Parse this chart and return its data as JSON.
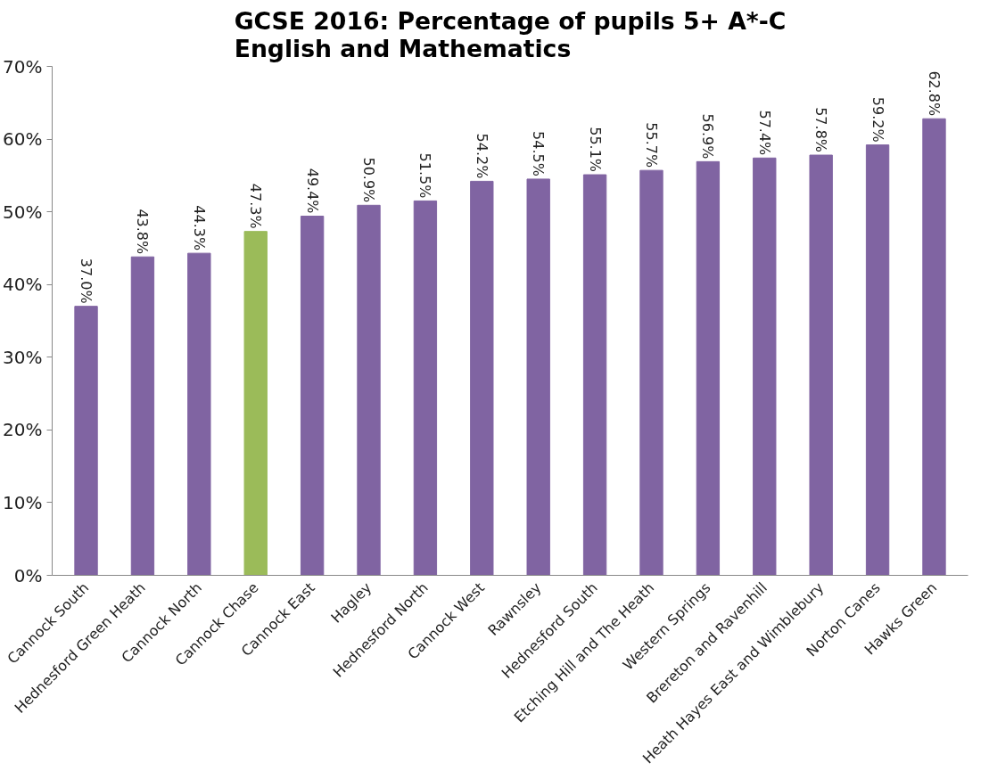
{
  "chart_data": {
    "type": "bar",
    "title": "GCSE 2016: Percentage of pupils 5+ A*-C\nEnglish and Mathematics",
    "categories": [
      "Cannock South",
      "Hednesford Green Heath",
      "Cannock North",
      "Cannock Chase",
      "Cannock East",
      "Hagley",
      "Hednesford North",
      "Cannock West",
      "Rawnsley",
      "Hednesford South",
      "Etching Hill and The Heath",
      "Western Springs",
      "Brereton and Ravenhill",
      "Heath Hayes East and Wimblebury",
      "Norton Canes",
      "Hawks Green"
    ],
    "values": [
      37.0,
      43.8,
      44.3,
      47.3,
      49.4,
      50.9,
      51.5,
      54.2,
      54.5,
      55.1,
      55.7,
      56.9,
      57.4,
      57.8,
      59.2,
      62.8
    ],
    "colors": [
      "#8064a2",
      "#8064a2",
      "#8064a2",
      "#9bbb59",
      "#8064a2",
      "#8064a2",
      "#8064a2",
      "#8064a2",
      "#8064a2",
      "#8064a2",
      "#8064a2",
      "#8064a2",
      "#8064a2",
      "#8064a2",
      "#8064a2",
      "#8064a2"
    ],
    "value_labels": [
      "37.0%",
      "43.8%",
      "44.3%",
      "47.3%",
      "49.4%",
      "50.9%",
      "51.5%",
      "54.2%",
      "54.5%",
      "55.1%",
      "55.7%",
      "56.9%",
      "57.4%",
      "57.8%",
      "59.2%",
      "62.8%"
    ],
    "ylim": [
      0,
      70
    ],
    "yticks": [
      {
        "value": 0,
        "label": "0%"
      },
      {
        "value": 10,
        "label": "10%"
      },
      {
        "value": 20,
        "label": "20%"
      },
      {
        "value": 30,
        "label": "30%"
      },
      {
        "value": 40,
        "label": "40%"
      },
      {
        "value": 50,
        "label": "50%"
      },
      {
        "value": 60,
        "label": "60%"
      },
      {
        "value": 70,
        "label": "70%"
      }
    ],
    "grid": false
  }
}
